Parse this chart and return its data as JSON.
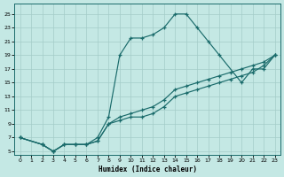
{
  "xlabel": "Humidex (Indice chaleur)",
  "bg_color": "#c4e8e4",
  "line_color": "#1a6b6b",
  "grid_color": "#a4ccc8",
  "xlim": [
    -0.5,
    23.5
  ],
  "ylim": [
    4.5,
    26.5
  ],
  "xticks": [
    0,
    1,
    2,
    3,
    4,
    5,
    6,
    7,
    8,
    9,
    10,
    11,
    12,
    13,
    14,
    15,
    16,
    17,
    18,
    19,
    20,
    21,
    22,
    23
  ],
  "yticks": [
    5,
    7,
    9,
    11,
    13,
    15,
    17,
    19,
    21,
    23,
    25
  ],
  "line_main_x": [
    0,
    2,
    3,
    4,
    5,
    6,
    7,
    8,
    9,
    10,
    11,
    12,
    13,
    14,
    15,
    16,
    17,
    18,
    20,
    21,
    22,
    23
  ],
  "line_main_y": [
    7.0,
    6.0,
    5.0,
    6.0,
    6.0,
    6.0,
    7.0,
    10.0,
    19.0,
    21.5,
    21.5,
    22.0,
    23.0,
    25.0,
    25.0,
    23.0,
    21.0,
    19.0,
    15.0,
    17.0,
    17.0,
    19.0
  ],
  "line_diag1_x": [
    0,
    2,
    3,
    4,
    5,
    6,
    7,
    8,
    9,
    10,
    11,
    12,
    13,
    14,
    15,
    16,
    17,
    18,
    19,
    20,
    21,
    22,
    23
  ],
  "line_diag1_y": [
    7.0,
    6.0,
    5.0,
    6.0,
    6.0,
    6.0,
    6.5,
    9.0,
    9.5,
    10.0,
    10.0,
    10.5,
    11.5,
    13.0,
    13.5,
    14.0,
    14.5,
    15.0,
    15.5,
    16.0,
    16.5,
    17.5,
    19.0
  ],
  "line_diag2_x": [
    0,
    2,
    3,
    4,
    5,
    6,
    7,
    8,
    9,
    10,
    11,
    12,
    13,
    14,
    15,
    16,
    17,
    18,
    19,
    20,
    21,
    22,
    23
  ],
  "line_diag2_y": [
    7.0,
    6.0,
    5.0,
    6.0,
    6.0,
    6.0,
    6.5,
    9.0,
    10.0,
    10.5,
    11.0,
    11.5,
    12.5,
    14.0,
    14.5,
    15.0,
    15.5,
    16.0,
    16.5,
    17.0,
    17.5,
    18.0,
    19.0
  ]
}
